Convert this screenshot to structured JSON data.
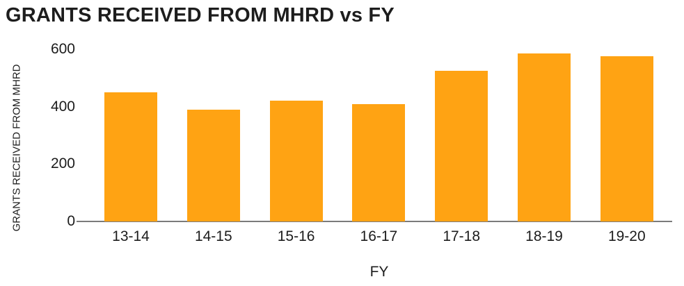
{
  "chart_data": {
    "type": "bar",
    "title": "GRANTS RECEIVED FROM MHRD vs FY",
    "xlabel": "FY",
    "ylabel": "GRANTS RECEIVED FROM MHRD",
    "categories": [
      "13-14",
      "14-15",
      "15-16",
      "16-17",
      "17-18",
      "18-19",
      "19-20"
    ],
    "values": [
      450,
      390,
      420,
      410,
      525,
      585,
      575
    ],
    "ylim": [
      0,
      600
    ],
    "yticks": [
      0,
      200,
      400,
      600
    ],
    "grid": "off",
    "legend": "none",
    "bar_color": "#FFA313",
    "axis_line_color": "#7b7b7b",
    "text_color": "#1c1c1c",
    "background_color": "#ffffff"
  }
}
